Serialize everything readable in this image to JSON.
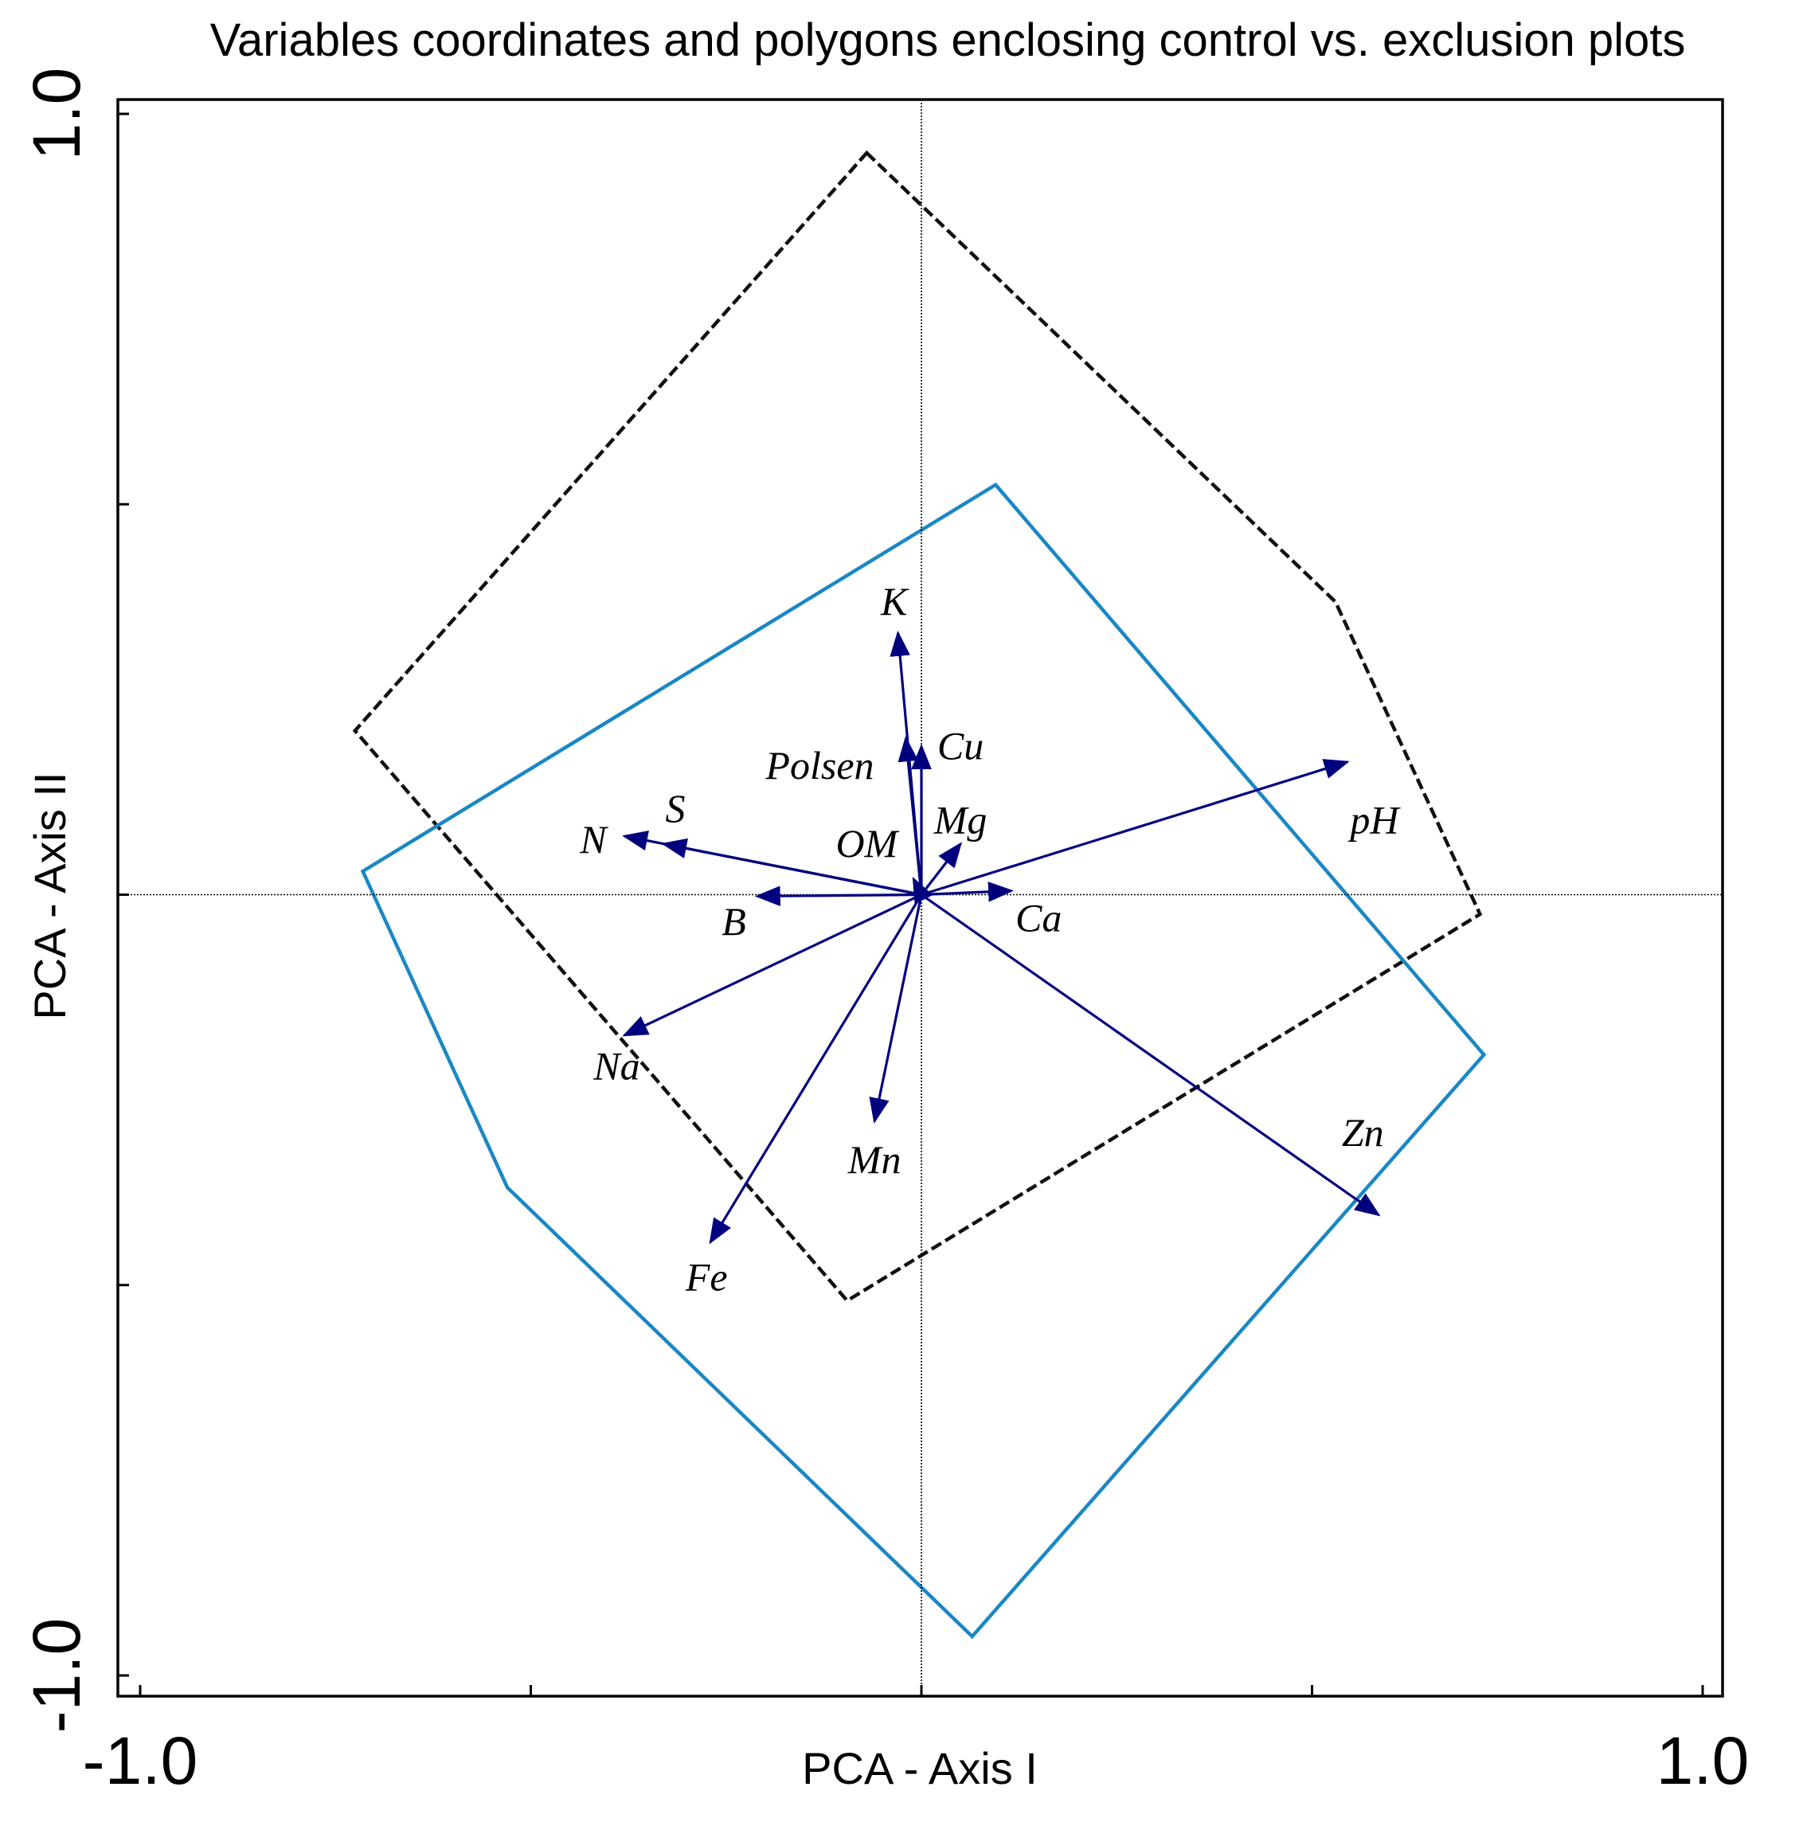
{
  "chart_data": {
    "type": "scatter",
    "subtype": "pca-biplot",
    "title": "Variables coordinates and polygons enclosing control vs. exclusion plots",
    "xlabel": "PCA - Axis I",
    "ylabel": "PCA - Axis II",
    "xlim": [
      -1.0,
      1.0
    ],
    "ylim": [
      -1.0,
      1.0
    ],
    "x_tick_values": [
      -1.0,
      -0.5,
      0.0,
      0.5,
      1.0
    ],
    "y_tick_values": [
      -1.0,
      -0.5,
      0.0,
      0.5,
      1.0
    ],
    "x_tick_labels": [
      {
        "value": -1.0,
        "label": "-1.0"
      },
      {
        "value": 1.0,
        "label": "1.0"
      }
    ],
    "y_tick_labels": [
      {
        "value": 1.0,
        "label": "1.0"
      },
      {
        "value": -1.0,
        "label": "-1.0"
      }
    ],
    "grid": false,
    "reference_lines": {
      "x": 0,
      "y": 0,
      "style": "dotted"
    },
    "arrow_color": "#00007f",
    "variables": [
      {
        "name": "K",
        "x": -0.03,
        "y": 0.335,
        "label_x": -0.035,
        "label_y": 0.37
      },
      {
        "name": "Cu",
        "x": 0.0,
        "y": 0.19,
        "label_x": 0.05,
        "label_y": 0.185
      },
      {
        "name": "Polsen",
        "x": -0.02,
        "y": 0.2,
        "label_x": -0.13,
        "label_y": 0.16
      },
      {
        "name": "Mg",
        "x": 0.05,
        "y": 0.065,
        "label_x": 0.05,
        "label_y": 0.09
      },
      {
        "name": "OM",
        "x": -0.01,
        "y": 0.02,
        "label_x": -0.07,
        "label_y": 0.06
      },
      {
        "name": "S",
        "x": -0.33,
        "y": 0.065,
        "label_x": -0.315,
        "label_y": 0.105
      },
      {
        "name": "N",
        "x": -0.38,
        "y": 0.075,
        "label_x": -0.42,
        "label_y": 0.065
      },
      {
        "name": "B",
        "x": -0.21,
        "y": -0.002,
        "label_x": -0.24,
        "label_y": -0.04
      },
      {
        "name": "Ca",
        "x": 0.115,
        "y": 0.005,
        "label_x": 0.15,
        "label_y": -0.035
      },
      {
        "name": "pH",
        "x": 0.545,
        "y": 0.17,
        "label_x": 0.58,
        "label_y": 0.09
      },
      {
        "name": "Na",
        "x": -0.38,
        "y": -0.18,
        "label_x": -0.39,
        "label_y": -0.225
      },
      {
        "name": "Mn",
        "x": -0.06,
        "y": -0.29,
        "label_x": -0.06,
        "label_y": -0.345
      },
      {
        "name": "Fe",
        "x": -0.27,
        "y": -0.445,
        "label_x": -0.275,
        "label_y": -0.495
      },
      {
        "name": "Zn",
        "x": 0.585,
        "y": -0.41,
        "label_x": 0.565,
        "label_y": -0.31
      }
    ],
    "polygons": [
      {
        "name": "dashed polygon",
        "color": "#111111",
        "style": "dashed",
        "points": [
          [
            -0.07,
            0.95
          ],
          [
            0.53,
            0.375
          ],
          [
            0.715,
            -0.025
          ],
          [
            -0.095,
            -0.52
          ],
          [
            -0.725,
            0.21
          ]
        ]
      },
      {
        "name": "solid polygon",
        "color": "#1a87c4",
        "style": "solid",
        "points": [
          [
            0.095,
            0.525
          ],
          [
            0.72,
            -0.205
          ],
          [
            0.065,
            -0.95
          ],
          [
            -0.53,
            -0.375
          ],
          [
            -0.715,
            0.03
          ]
        ]
      }
    ]
  }
}
